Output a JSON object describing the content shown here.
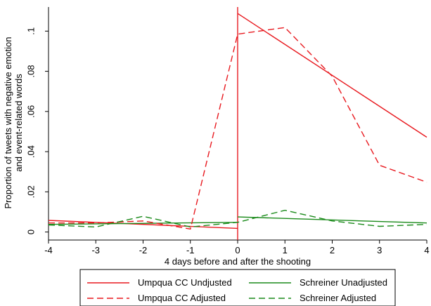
{
  "chart_data": {
    "type": "line",
    "xlabel": "4 days before and after the shooting",
    "ylabel_lines": [
      "Proportion of tweets with negative emotion",
      "and event-related words"
    ],
    "x_ticks": [
      -4,
      -3,
      -2,
      -1,
      0,
      1,
      2,
      3,
      4
    ],
    "x_tick_labels": [
      "-4",
      "-3",
      "-2",
      "-1",
      "0",
      "1",
      "2",
      "3",
      "4"
    ],
    "y_ticks": [
      0,
      0.02,
      0.04,
      0.06,
      0.08,
      0.1
    ],
    "y_tick_labels": [
      "0",
      ".02",
      ".04",
      ".06",
      ".08",
      ".1"
    ],
    "xlim": [
      -4,
      4
    ],
    "ylim": [
      -0.004,
      0.112
    ],
    "event_line_x": 0,
    "grid": false,
    "legend_position": "bottom",
    "series": [
      {
        "name": "Umpqua CC Undjusted",
        "color": "#e8191f",
        "dash": "solid",
        "segments": [
          {
            "x": [
              -4,
              0
            ],
            "y": [
              0.0058,
              0.0018
            ]
          },
          {
            "x": [
              0,
              4
            ],
            "y": [
              0.1088,
              0.0472
            ]
          }
        ]
      },
      {
        "name": "Schreiner Unadjusted",
        "color": "#1a8a1a",
        "dash": "solid",
        "segments": [
          {
            "x": [
              -4,
              0
            ],
            "y": [
              0.0038,
              0.0048
            ]
          },
          {
            "x": [
              0,
              4
            ],
            "y": [
              0.0075,
              0.0045
            ]
          }
        ]
      },
      {
        "name": "Umpqua CC Adjusted",
        "color": "#e8191f",
        "dash": "dashed",
        "segments": [
          {
            "x": [
              -4,
              -3,
              -2,
              -1,
              0,
              1,
              2,
              3,
              4
            ],
            "y": [
              0.0045,
              0.0045,
              0.0055,
              0.0015,
              0.0985,
              0.1018,
              0.0775,
              0.0332,
              0.0248
            ]
          }
        ]
      },
      {
        "name": "Schreiner Adjusted",
        "color": "#1a8a1a",
        "dash": "dashed",
        "segments": [
          {
            "x": [
              -4,
              -3,
              -2,
              -1,
              0,
              1,
              2,
              3,
              4
            ],
            "y": [
              0.0035,
              0.0025,
              0.0078,
              0.0025,
              0.0048,
              0.0108,
              0.0055,
              0.0028,
              0.0038
            ]
          }
        ]
      }
    ]
  }
}
